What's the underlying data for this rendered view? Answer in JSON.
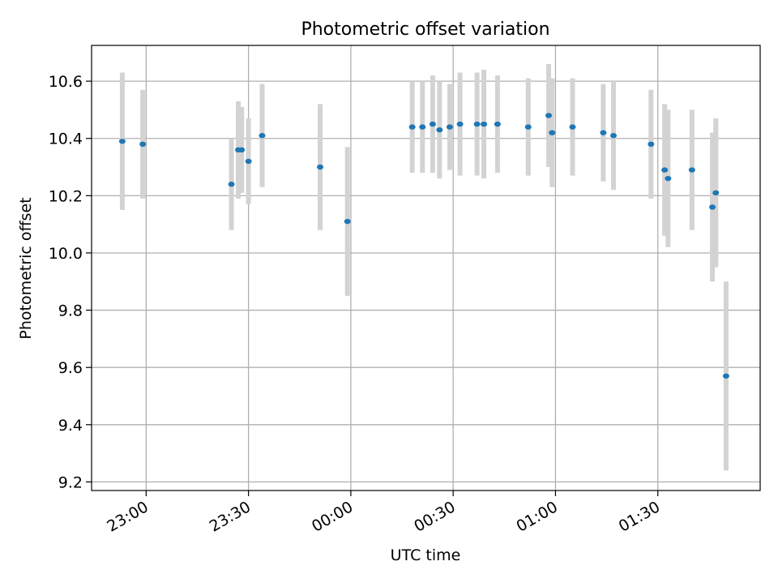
{
  "chart_data": {
    "type": "scatter",
    "title": "Photometric offset variation",
    "xlabel": "UTC time",
    "ylabel": "Photometric offset",
    "x_ticks": [
      "23:00",
      "23:30",
      "00:00",
      "00:30",
      "01:00",
      "01:30"
    ],
    "y_ticks": [
      "9.2",
      "9.4",
      "9.6",
      "9.8",
      "10.0",
      "10.2",
      "10.4",
      "10.6"
    ],
    "xlim": [
      "22:44",
      "02:00"
    ],
    "ylim": [
      9.17,
      10.725
    ],
    "grid": true,
    "colors": {
      "point": "#1f77b4",
      "errorbar": "#d3d3d3",
      "grid": "#b0b0b0"
    },
    "points": [
      {
        "x": "22:53",
        "y": 10.39,
        "yerr": 0.24
      },
      {
        "x": "22:59",
        "y": 10.38,
        "yerr": 0.19
      },
      {
        "x": "23:25",
        "y": 10.24,
        "yerr": 0.16
      },
      {
        "x": "23:27",
        "y": 10.36,
        "yerr": 0.17
      },
      {
        "x": "23:28",
        "y": 10.36,
        "yerr": 0.15
      },
      {
        "x": "23:30",
        "y": 10.32,
        "yerr": 0.15
      },
      {
        "x": "23:34",
        "y": 10.41,
        "yerr": 0.18
      },
      {
        "x": "23:51",
        "y": 10.3,
        "yerr": 0.22
      },
      {
        "x": "23:59",
        "y": 10.11,
        "yerr": 0.26
      },
      {
        "x": "00:18",
        "y": 10.44,
        "yerr": 0.16
      },
      {
        "x": "00:21",
        "y": 10.44,
        "yerr": 0.16
      },
      {
        "x": "00:24",
        "y": 10.45,
        "yerr": 0.17
      },
      {
        "x": "00:26",
        "y": 10.43,
        "yerr": 0.17
      },
      {
        "x": "00:29",
        "y": 10.44,
        "yerr": 0.15
      },
      {
        "x": "00:32",
        "y": 10.45,
        "yerr": 0.18
      },
      {
        "x": "00:37",
        "y": 10.45,
        "yerr": 0.18
      },
      {
        "x": "00:39",
        "y": 10.45,
        "yerr": 0.19
      },
      {
        "x": "00:43",
        "y": 10.45,
        "yerr": 0.17
      },
      {
        "x": "00:52",
        "y": 10.44,
        "yerr": 0.17
      },
      {
        "x": "00:58",
        "y": 10.48,
        "yerr": 0.18
      },
      {
        "x": "00:59",
        "y": 10.42,
        "yerr": 0.19
      },
      {
        "x": "01:05",
        "y": 10.44,
        "yerr": 0.17
      },
      {
        "x": "01:14",
        "y": 10.42,
        "yerr": 0.17
      },
      {
        "x": "01:17",
        "y": 10.41,
        "yerr": 0.19
      },
      {
        "x": "01:28",
        "y": 10.38,
        "yerr": 0.19
      },
      {
        "x": "01:32",
        "y": 10.29,
        "yerr": 0.23
      },
      {
        "x": "01:33",
        "y": 10.26,
        "yerr": 0.24
      },
      {
        "x": "01:40",
        "y": 10.29,
        "yerr": 0.21
      },
      {
        "x": "01:46",
        "y": 10.16,
        "yerr": 0.26
      },
      {
        "x": "01:47",
        "y": 10.21,
        "yerr": 0.26
      },
      {
        "x": "01:50",
        "y": 9.57,
        "yerr": 0.33
      }
    ]
  }
}
